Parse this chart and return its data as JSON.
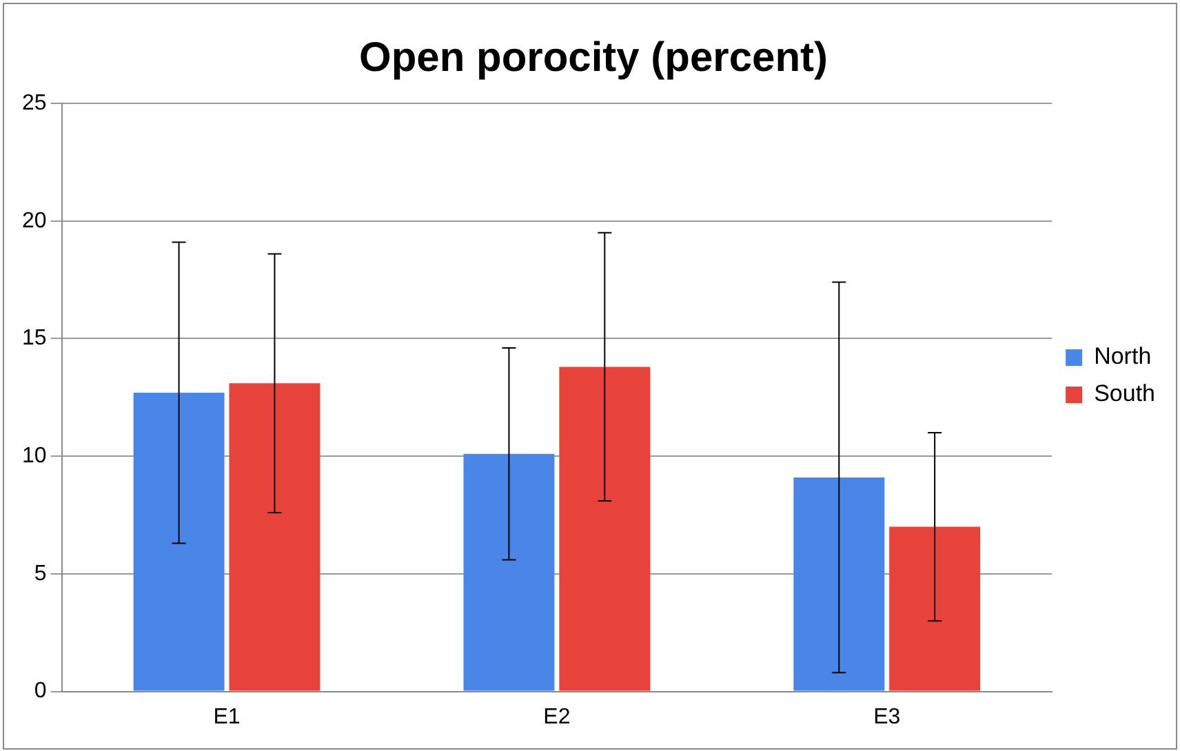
{
  "chart_data": {
    "type": "bar",
    "title": "Open porocity (percent)",
    "categories": [
      "E1",
      "E2",
      "E3"
    ],
    "series": [
      {
        "name": "North",
        "color": "#4a86e8",
        "values": [
          12.7,
          10.1,
          9.1
        ],
        "errors": [
          6.4,
          4.5,
          8.3
        ]
      },
      {
        "name": "South",
        "color": "#e8433a",
        "values": [
          13.1,
          13.8,
          7.0
        ],
        "errors": [
          5.5,
          5.7,
          4.0
        ]
      }
    ],
    "ylim": [
      0,
      25
    ],
    "yticks": [
      0,
      5,
      10,
      15,
      20,
      25
    ],
    "grid": "y",
    "legend": "right"
  }
}
